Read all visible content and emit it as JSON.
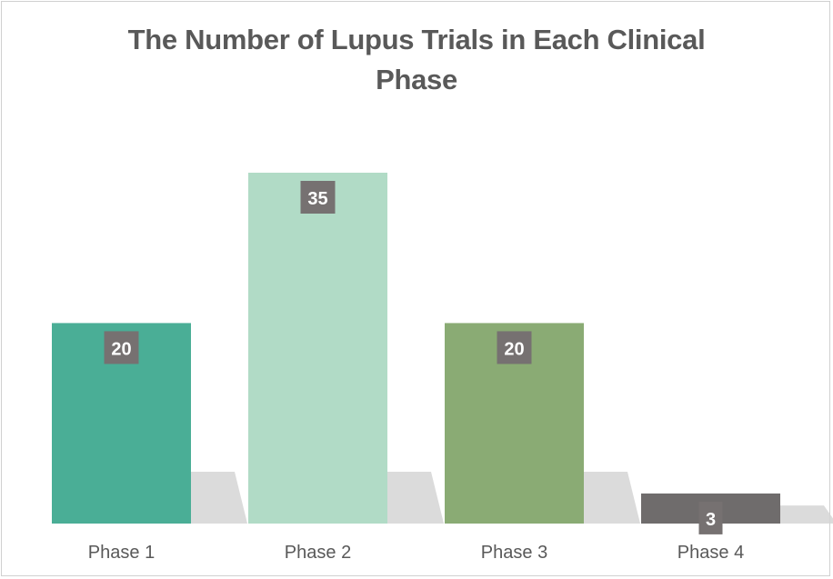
{
  "chart_data": {
    "type": "bar",
    "title_lines": [
      "The Number of Lupus Trials in Each Clinical",
      "Phase"
    ],
    "categories": [
      "Phase 1",
      "Phase 2",
      "Phase 3",
      "Phase 4"
    ],
    "values": [
      20,
      35,
      20,
      3
    ],
    "data_labels": [
      "20",
      "35",
      "20",
      "3"
    ],
    "colors": [
      "#4aae96",
      "#b1dbc6",
      "#8aab74",
      "#6f6c6c"
    ],
    "label_box_color": "#767171",
    "label_text_color": "#ffffff",
    "axis_label_color": "#595959",
    "shadow_color": "#d5d5d5",
    "xlabel": "",
    "ylabel": "",
    "grid": false,
    "legend": "none",
    "ylim": [
      0,
      35
    ]
  }
}
